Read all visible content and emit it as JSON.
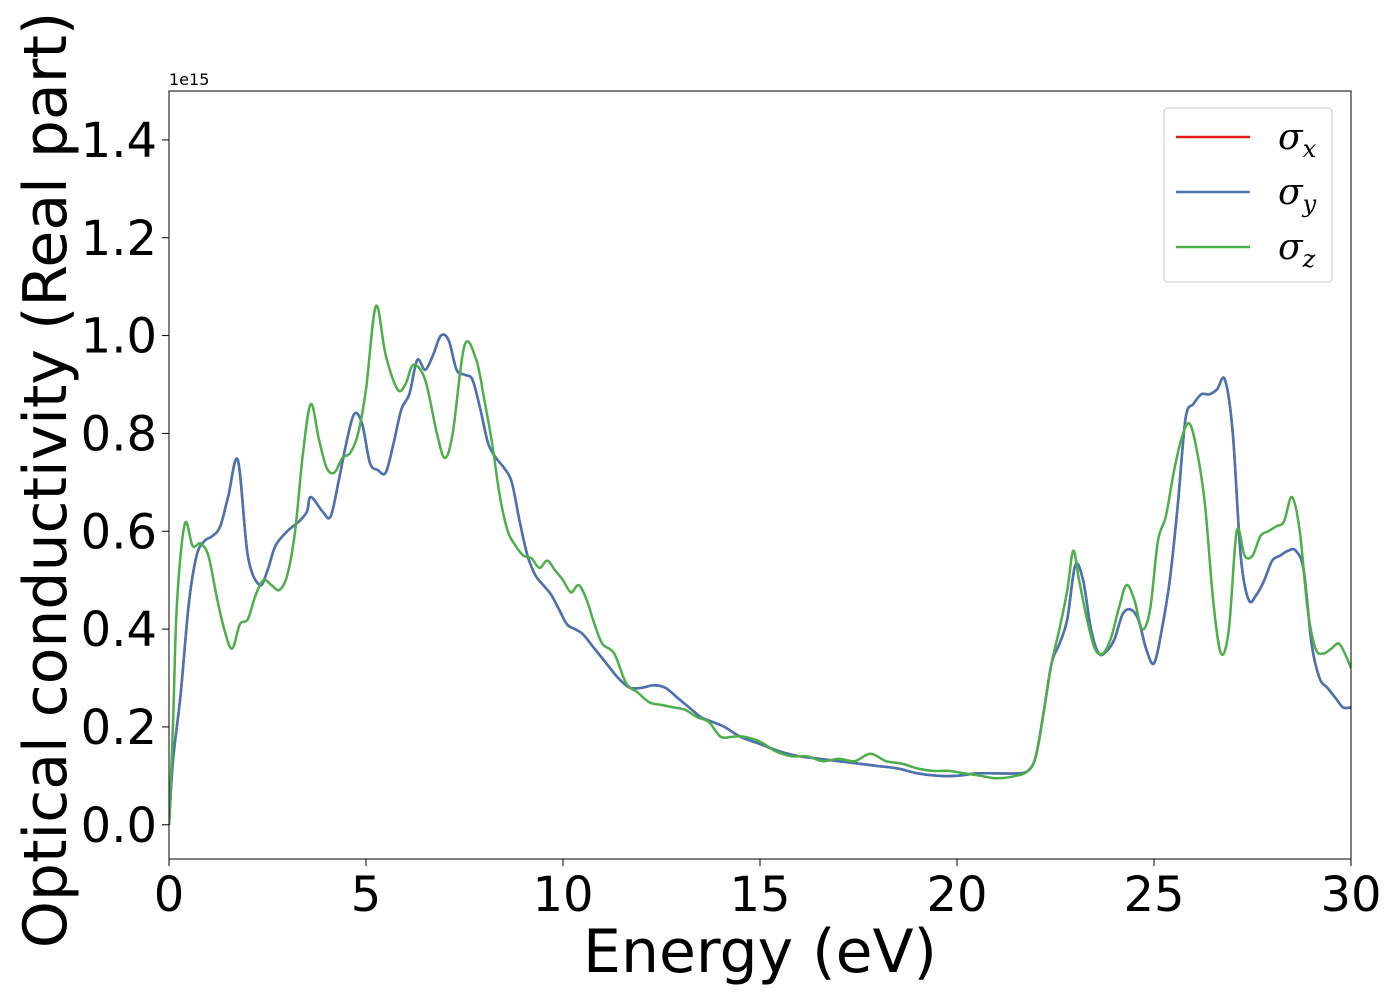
{
  "chart_data": {
    "type": "line",
    "xlabel": "Energy (eV)",
    "ylabel": "Optical conductivity (Real part)",
    "y_offset_text": "1e15",
    "y_scale_factor": 1000000000000000.0,
    "xlim": [
      0,
      30
    ],
    "ylim": [
      -0.07,
      1.5
    ],
    "x_ticks": [
      0,
      5,
      10,
      15,
      20,
      25,
      30
    ],
    "x_tick_labels": [
      "0",
      "5",
      "10",
      "15",
      "20",
      "25",
      "30"
    ],
    "y_ticks": [
      0.0,
      0.2,
      0.4,
      0.6,
      0.8,
      1.0,
      1.2,
      1.4
    ],
    "y_tick_labels": [
      "0.0",
      "0.2",
      "0.4",
      "0.6",
      "0.8",
      "1.0",
      "1.2",
      "1.4"
    ],
    "grid": false,
    "legend_position": "top-right",
    "series": [
      {
        "name": "σx",
        "legend_symbol": "σ",
        "legend_subscript": "x",
        "color": "#e41a1c",
        "x": [
          0,
          0.1,
          0.3,
          0.5,
          0.7,
          0.9,
          1.1,
          1.3,
          1.5,
          1.75,
          2.0,
          2.3,
          2.5,
          2.7,
          3.0,
          3.3,
          3.5,
          3.6,
          3.9,
          4.1,
          4.3,
          4.5,
          4.7,
          4.9,
          5.1,
          5.3,
          5.5,
          5.7,
          5.9,
          6.1,
          6.3,
          6.5,
          6.7,
          6.9,
          7.1,
          7.3,
          7.5,
          7.7,
          7.9,
          8.1,
          8.3,
          8.5,
          8.7,
          8.9,
          9.1,
          9.3,
          9.5,
          9.7,
          9.9,
          10.1,
          10.3,
          10.5,
          10.8,
          11.1,
          11.4,
          11.7,
          12.0,
          12.3,
          12.6,
          12.9,
          13.2,
          13.5,
          13.8,
          14.1,
          14.5,
          15.0,
          15.5,
          16.0,
          16.5,
          17.0,
          17.5,
          18.0,
          18.5,
          19.0,
          19.5,
          20.0,
          20.5,
          21.0,
          21.5,
          21.8,
          22.0,
          22.2,
          22.4,
          22.6,
          22.8,
          23.0,
          23.2,
          23.4,
          23.6,
          23.8,
          24.0,
          24.2,
          24.4,
          24.6,
          24.8,
          25.0,
          25.2,
          25.4,
          25.6,
          25.8,
          26.0,
          26.2,
          26.4,
          26.6,
          26.8,
          27.0,
          27.2,
          27.4,
          27.6,
          27.8,
          28.0,
          28.2,
          28.4,
          28.6,
          28.8,
          29.0,
          29.2,
          29.4,
          29.6,
          29.8,
          30.0
        ],
        "y": [
          0.0,
          0.13,
          0.27,
          0.45,
          0.55,
          0.58,
          0.59,
          0.61,
          0.67,
          0.745,
          0.55,
          0.49,
          0.52,
          0.57,
          0.6,
          0.62,
          0.64,
          0.67,
          0.64,
          0.63,
          0.7,
          0.78,
          0.84,
          0.82,
          0.74,
          0.725,
          0.72,
          0.78,
          0.85,
          0.88,
          0.95,
          0.93,
          0.96,
          1.0,
          0.99,
          0.93,
          0.92,
          0.91,
          0.85,
          0.78,
          0.75,
          0.73,
          0.7,
          0.62,
          0.55,
          0.51,
          0.49,
          0.47,
          0.44,
          0.41,
          0.4,
          0.39,
          0.36,
          0.33,
          0.3,
          0.28,
          0.28,
          0.285,
          0.28,
          0.26,
          0.24,
          0.22,
          0.21,
          0.2,
          0.18,
          0.165,
          0.15,
          0.14,
          0.135,
          0.13,
          0.125,
          0.12,
          0.115,
          0.105,
          0.1,
          0.1,
          0.105,
          0.105,
          0.105,
          0.11,
          0.14,
          0.23,
          0.33,
          0.37,
          0.42,
          0.53,
          0.5,
          0.4,
          0.35,
          0.355,
          0.38,
          0.43,
          0.44,
          0.42,
          0.36,
          0.33,
          0.4,
          0.5,
          0.65,
          0.83,
          0.86,
          0.88,
          0.88,
          0.89,
          0.91,
          0.8,
          0.55,
          0.46,
          0.47,
          0.5,
          0.54,
          0.55,
          0.56,
          0.56,
          0.52,
          0.37,
          0.3,
          0.28,
          0.26,
          0.24,
          0.24
        ]
      },
      {
        "name": "σy",
        "legend_symbol": "σ",
        "legend_subscript": "y",
        "color": "#4575b4",
        "x": [
          0,
          0.1,
          0.3,
          0.5,
          0.7,
          0.9,
          1.1,
          1.3,
          1.5,
          1.75,
          2.0,
          2.3,
          2.5,
          2.7,
          3.0,
          3.3,
          3.5,
          3.6,
          3.9,
          4.1,
          4.3,
          4.5,
          4.7,
          4.9,
          5.1,
          5.3,
          5.5,
          5.7,
          5.9,
          6.1,
          6.3,
          6.5,
          6.7,
          6.9,
          7.1,
          7.3,
          7.5,
          7.7,
          7.9,
          8.1,
          8.3,
          8.5,
          8.7,
          8.9,
          9.1,
          9.3,
          9.5,
          9.7,
          9.9,
          10.1,
          10.3,
          10.5,
          10.8,
          11.1,
          11.4,
          11.7,
          12.0,
          12.3,
          12.6,
          12.9,
          13.2,
          13.5,
          13.8,
          14.1,
          14.5,
          15.0,
          15.5,
          16.0,
          16.5,
          17.0,
          17.5,
          18.0,
          18.5,
          19.0,
          19.5,
          20.0,
          20.5,
          21.0,
          21.5,
          21.8,
          22.0,
          22.2,
          22.4,
          22.6,
          22.8,
          23.0,
          23.2,
          23.4,
          23.6,
          23.8,
          24.0,
          24.2,
          24.4,
          24.6,
          24.8,
          25.0,
          25.2,
          25.4,
          25.6,
          25.8,
          26.0,
          26.2,
          26.4,
          26.6,
          26.8,
          27.0,
          27.2,
          27.4,
          27.6,
          27.8,
          28.0,
          28.2,
          28.4,
          28.6,
          28.8,
          29.0,
          29.2,
          29.4,
          29.6,
          29.8,
          30.0
        ],
        "y": [
          0.0,
          0.13,
          0.27,
          0.45,
          0.55,
          0.58,
          0.59,
          0.61,
          0.67,
          0.745,
          0.55,
          0.49,
          0.52,
          0.57,
          0.6,
          0.62,
          0.64,
          0.67,
          0.64,
          0.63,
          0.7,
          0.78,
          0.84,
          0.82,
          0.74,
          0.725,
          0.72,
          0.78,
          0.85,
          0.88,
          0.95,
          0.93,
          0.96,
          1.0,
          0.99,
          0.93,
          0.92,
          0.91,
          0.85,
          0.78,
          0.75,
          0.73,
          0.7,
          0.62,
          0.55,
          0.51,
          0.49,
          0.47,
          0.44,
          0.41,
          0.4,
          0.39,
          0.36,
          0.33,
          0.3,
          0.28,
          0.28,
          0.285,
          0.28,
          0.26,
          0.24,
          0.22,
          0.21,
          0.2,
          0.18,
          0.165,
          0.15,
          0.14,
          0.135,
          0.13,
          0.125,
          0.12,
          0.115,
          0.105,
          0.1,
          0.1,
          0.105,
          0.105,
          0.105,
          0.11,
          0.14,
          0.23,
          0.33,
          0.37,
          0.42,
          0.53,
          0.5,
          0.4,
          0.35,
          0.355,
          0.38,
          0.43,
          0.44,
          0.42,
          0.36,
          0.33,
          0.4,
          0.5,
          0.65,
          0.83,
          0.86,
          0.88,
          0.88,
          0.89,
          0.91,
          0.8,
          0.55,
          0.46,
          0.47,
          0.5,
          0.54,
          0.55,
          0.56,
          0.56,
          0.52,
          0.37,
          0.3,
          0.28,
          0.26,
          0.24,
          0.24
        ]
      },
      {
        "name": "σz",
        "legend_symbol": "σ",
        "legend_subscript": "z",
        "color": "#4daf4a",
        "x": [
          0,
          0.1,
          0.2,
          0.4,
          0.6,
          0.8,
          1.0,
          1.2,
          1.4,
          1.6,
          1.8,
          2.0,
          2.2,
          2.4,
          2.6,
          2.8,
          3.0,
          3.2,
          3.4,
          3.6,
          3.8,
          4.0,
          4.2,
          4.4,
          4.6,
          4.8,
          5.0,
          5.25,
          5.5,
          5.8,
          6.0,
          6.2,
          6.5,
          6.8,
          7.0,
          7.2,
          7.5,
          7.8,
          8.0,
          8.2,
          8.4,
          8.6,
          8.8,
          9.0,
          9.2,
          9.4,
          9.6,
          9.8,
          10.0,
          10.2,
          10.4,
          10.6,
          10.8,
          11.0,
          11.3,
          11.6,
          11.9,
          12.2,
          12.5,
          12.8,
          13.1,
          13.4,
          13.7,
          14.0,
          14.3,
          14.6,
          15.0,
          15.4,
          15.8,
          16.2,
          16.6,
          17.0,
          17.4,
          17.8,
          18.2,
          18.6,
          19.0,
          19.4,
          19.8,
          20.2,
          20.6,
          21.0,
          21.5,
          21.8,
          22.0,
          22.2,
          22.4,
          22.6,
          22.8,
          22.95,
          23.1,
          23.3,
          23.5,
          23.7,
          23.9,
          24.1,
          24.3,
          24.5,
          24.7,
          24.9,
          25.1,
          25.3,
          25.5,
          25.7,
          25.9,
          26.1,
          26.3,
          26.5,
          26.7,
          26.9,
          27.1,
          27.3,
          27.5,
          27.7,
          27.9,
          28.1,
          28.3,
          28.5,
          28.7,
          28.9,
          29.1,
          29.3,
          29.5,
          29.7,
          29.9,
          30.0
        ],
        "y": [
          0.0,
          0.2,
          0.45,
          0.615,
          0.57,
          0.575,
          0.55,
          0.47,
          0.4,
          0.36,
          0.41,
          0.42,
          0.47,
          0.5,
          0.49,
          0.48,
          0.51,
          0.6,
          0.76,
          0.86,
          0.79,
          0.73,
          0.72,
          0.75,
          0.76,
          0.8,
          0.89,
          1.06,
          0.96,
          0.89,
          0.9,
          0.94,
          0.91,
          0.8,
          0.75,
          0.8,
          0.98,
          0.95,
          0.87,
          0.78,
          0.67,
          0.6,
          0.57,
          0.55,
          0.545,
          0.525,
          0.54,
          0.52,
          0.5,
          0.475,
          0.49,
          0.46,
          0.41,
          0.37,
          0.35,
          0.29,
          0.27,
          0.25,
          0.245,
          0.24,
          0.235,
          0.22,
          0.21,
          0.18,
          0.18,
          0.18,
          0.17,
          0.15,
          0.14,
          0.14,
          0.13,
          0.135,
          0.13,
          0.145,
          0.13,
          0.125,
          0.115,
          0.11,
          0.11,
          0.105,
          0.1,
          0.095,
          0.1,
          0.11,
          0.14,
          0.23,
          0.33,
          0.4,
          0.48,
          0.56,
          0.5,
          0.42,
          0.36,
          0.35,
          0.38,
          0.44,
          0.49,
          0.46,
          0.4,
          0.44,
          0.58,
          0.63,
          0.72,
          0.79,
          0.82,
          0.76,
          0.65,
          0.46,
          0.35,
          0.4,
          0.6,
          0.55,
          0.55,
          0.59,
          0.6,
          0.61,
          0.62,
          0.67,
          0.6,
          0.44,
          0.36,
          0.35,
          0.36,
          0.37,
          0.34,
          0.32
        ]
      }
    ]
  }
}
